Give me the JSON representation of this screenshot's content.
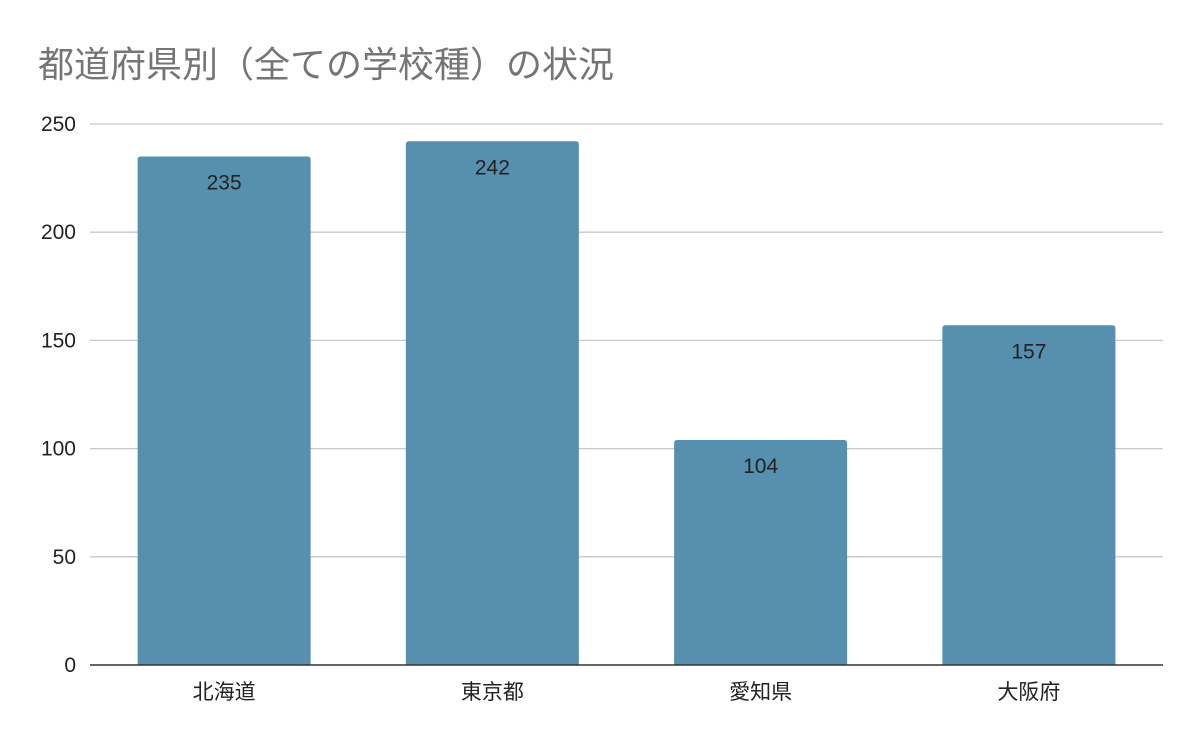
{
  "chart_data": {
    "type": "bar",
    "title": "都道府県別（全ての学校種）の状況",
    "categories": [
      "北海道",
      "東京都",
      "愛知県",
      "大阪府"
    ],
    "values": [
      235,
      242,
      104,
      157
    ],
    "data_labels": [
      "235",
      "242",
      "104",
      "157"
    ],
    "y_ticks": [
      0,
      50,
      100,
      150,
      200,
      250
    ],
    "ylim": [
      0,
      250
    ],
    "xlabel": "",
    "ylabel": "",
    "grid": true,
    "legend": "none",
    "bar_color": "#5790ae",
    "grid_color": "#c8c8c8",
    "axis_color": "#333333",
    "title_color": "#757575"
  }
}
